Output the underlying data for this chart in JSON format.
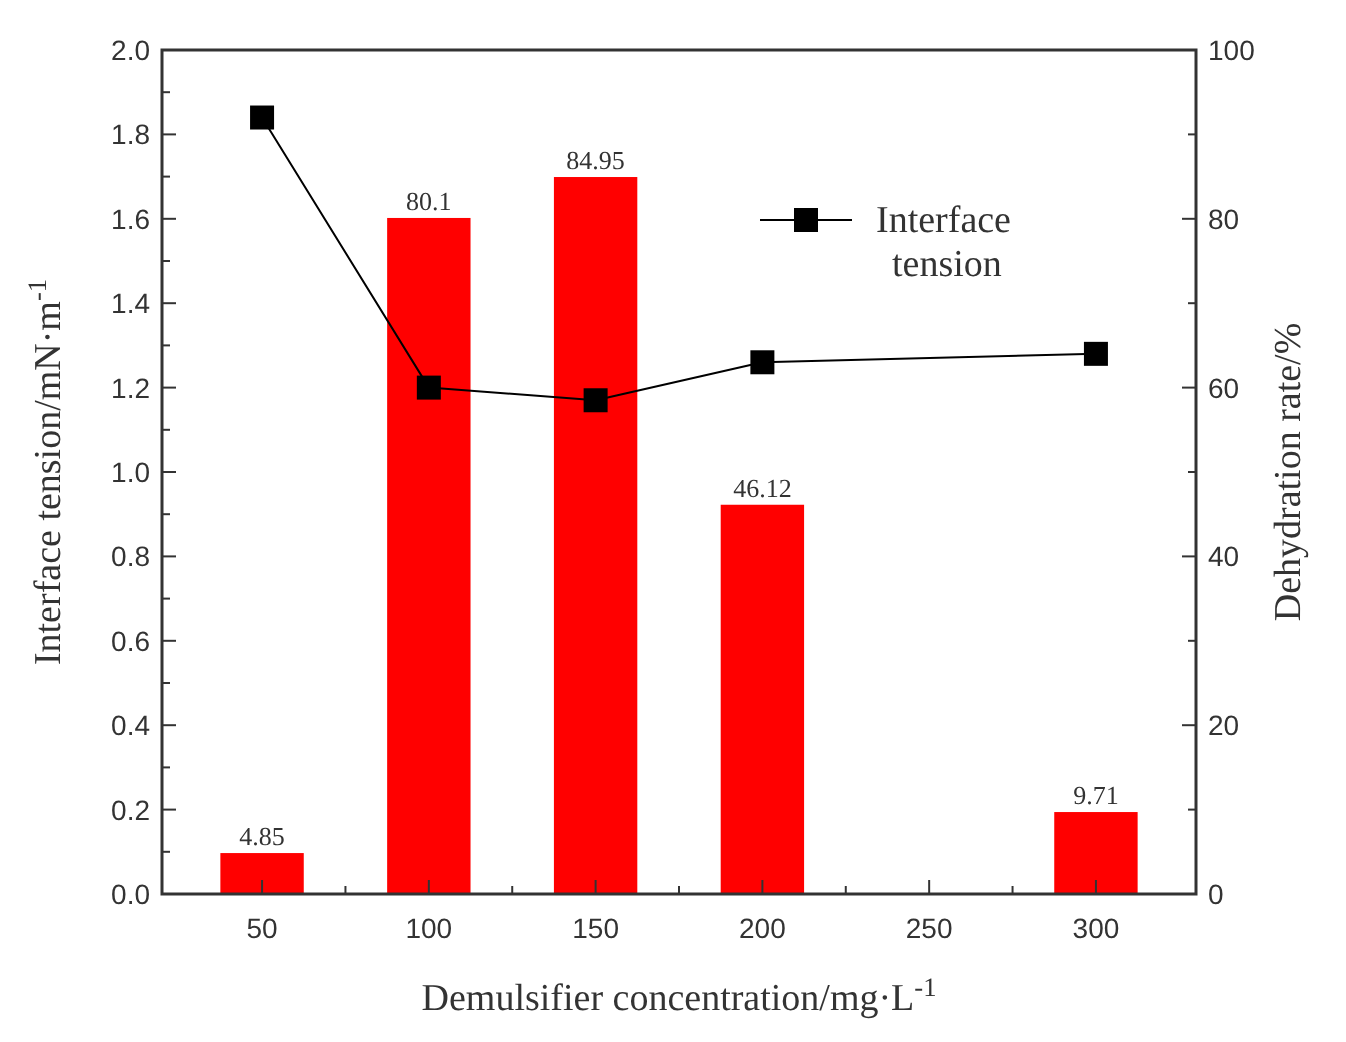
{
  "chart_data": {
    "type": "bar",
    "xlabel": "Demulsifier concentration/mg·L$^{-1}$",
    "ylabel": "Interface tension/mN·m$^{-1}$",
    "y2label": "Dehydration rate/%",
    "x": [
      50,
      100,
      150,
      200,
      300
    ],
    "xlim": [
      20,
      330
    ],
    "xticks": [
      50,
      100,
      150,
      200,
      250,
      300
    ],
    "ylim": [
      0,
      2
    ],
    "yticks": [
      {
        "value": 0,
        "label": "0.0"
      },
      {
        "value": 0.2,
        "label": "0.2"
      },
      {
        "value": 0.4,
        "label": "0.4"
      },
      {
        "value": 0.6,
        "label": "0.6"
      },
      {
        "value": 0.8,
        "label": "0.8"
      },
      {
        "value": 1,
        "label": "1.0"
      },
      {
        "value": 1.2,
        "label": "1.2"
      },
      {
        "value": 1.4,
        "label": "1.4"
      },
      {
        "value": 1.6,
        "label": "1.6"
      },
      {
        "value": 1.8,
        "label": "1.8"
      },
      {
        "value": 2,
        "label": "2.0"
      }
    ],
    "y2lim": [
      0,
      100
    ],
    "y2ticks": [
      0,
      20,
      40,
      60,
      80,
      100
    ],
    "series": [
      {
        "axis": "y2",
        "color": "#ff0000",
        "values": [
          4.85,
          80.1,
          84.95,
          46.12,
          9.71
        ],
        "value_labels": [
          "4.85",
          "80.1",
          "84.95",
          "46.12",
          "9.71"
        ]
      },
      {
        "type": "line",
        "axis": "y",
        "name": "Interface tension",
        "color": "#000000",
        "marker": "square",
        "values": [
          1.84,
          1.2,
          1.17,
          1.26,
          1.28
        ]
      }
    ],
    "legend": "top right"
  }
}
